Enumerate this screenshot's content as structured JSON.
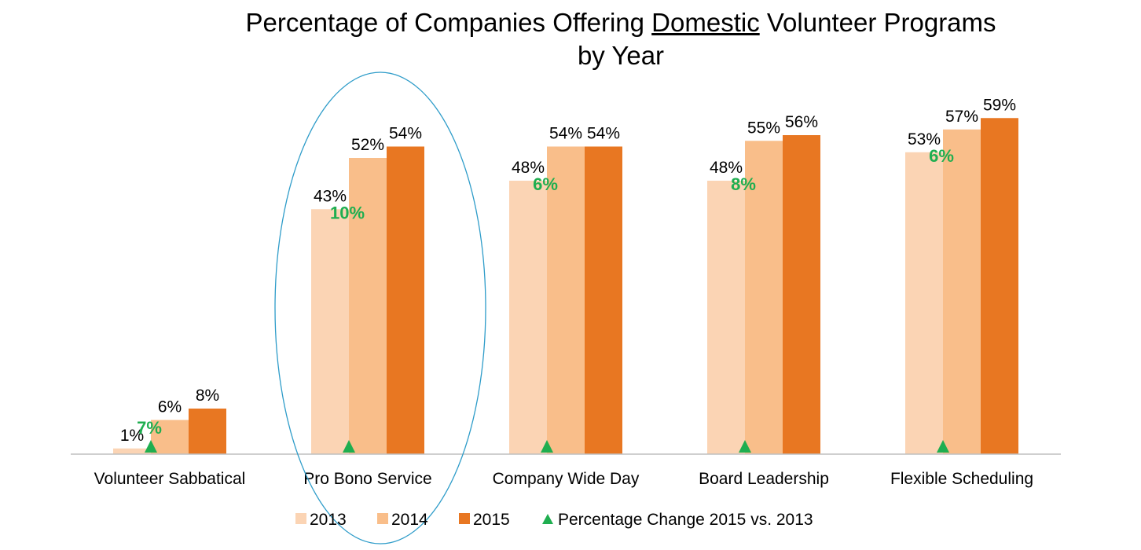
{
  "title": {
    "before": "Percentage of Companies Offering ",
    "emphasis": "Domestic",
    "after": " Volunteer Programs",
    "line2": "by Year"
  },
  "chart_data": {
    "type": "bar",
    "categories": [
      "Volunteer Sabbatical",
      "Pro Bono Service",
      "Company Wide Day",
      "Board Leadership",
      "Flexible Scheduling"
    ],
    "series": [
      {
        "name": "2013",
        "values": [
          1,
          43,
          48,
          48,
          53
        ],
        "labels": [
          "1%",
          "43%",
          "48%",
          "48%",
          "53%"
        ],
        "color": "#fbd4b4"
      },
      {
        "name": "2014",
        "values": [
          6,
          52,
          54,
          55,
          57
        ],
        "labels": [
          "6%",
          "52%",
          "54%",
          "55%",
          "57%"
        ],
        "color": "#f9be8a"
      },
      {
        "name": "2015",
        "values": [
          8,
          54,
          54,
          56,
          59
        ],
        "labels": [
          "8%",
          "54%",
          "54%",
          "56%",
          "59%"
        ],
        "color": "#e87722"
      }
    ],
    "change": {
      "name": "Percentage Change 2015 vs. 2013",
      "values": [
        7,
        10,
        6,
        8,
        6
      ],
      "labels": [
        "7%",
        "10%",
        "6%",
        "8%",
        "6%"
      ],
      "color": "#1fae50"
    },
    "ylim": [
      0,
      65
    ],
    "grid": false,
    "legend": "bottom",
    "highlight": {
      "category": "Pro Bono Service",
      "shape": "ellipse",
      "color": "#2e9cc9"
    }
  }
}
